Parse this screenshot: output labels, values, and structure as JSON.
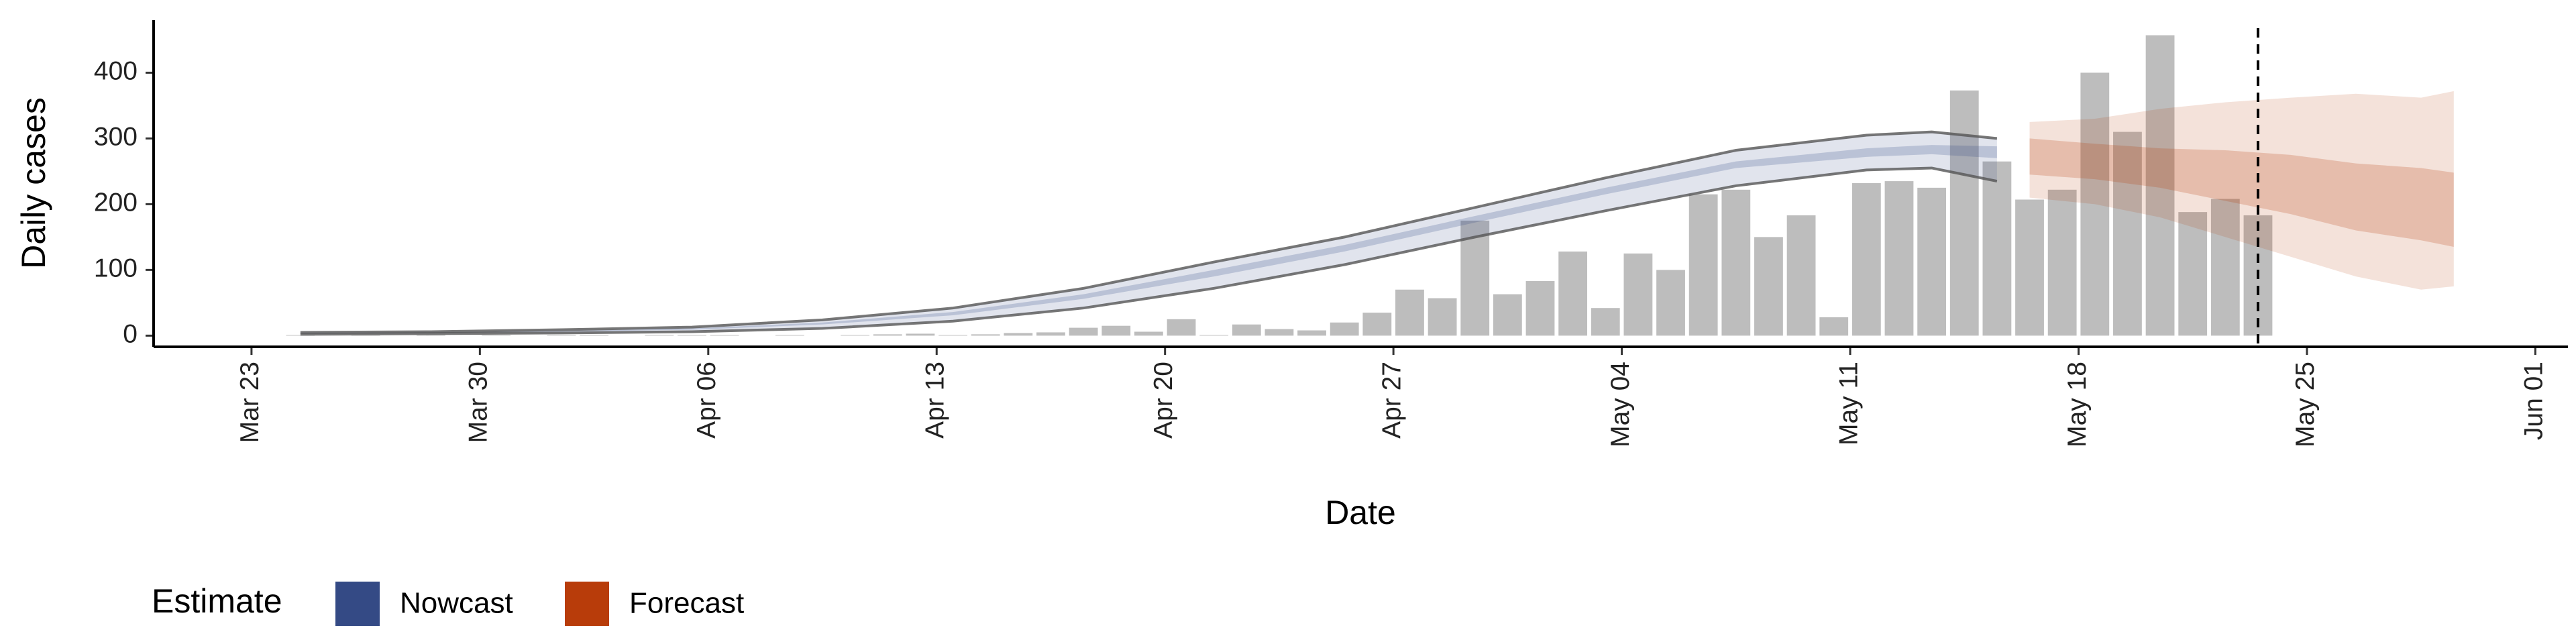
{
  "chart_data": {
    "type": "bar",
    "x_label": "Date",
    "y_label": "Daily cases",
    "legend_title": "Estimate",
    "x": [
      "Mar 24",
      "Mar 25",
      "Mar 26",
      "Mar 27",
      "Mar 28",
      "Mar 29",
      "Mar 30",
      "Mar 31",
      "Apr 01",
      "Apr 02",
      "Apr 03",
      "Apr 04",
      "Apr 05",
      "Apr 06",
      "Apr 07",
      "Apr 08",
      "Apr 09",
      "Apr 10",
      "Apr 11",
      "Apr 12",
      "Apr 13",
      "Apr 14",
      "Apr 15",
      "Apr 16",
      "Apr 17",
      "Apr 18",
      "Apr 19",
      "Apr 20",
      "Apr 21",
      "Apr 22",
      "Apr 23",
      "Apr 24",
      "Apr 25",
      "Apr 26",
      "Apr 27",
      "Apr 28",
      "Apr 29",
      "Apr 30",
      "May 01",
      "May 02",
      "May 03",
      "May 04",
      "May 05",
      "May 06",
      "May 07",
      "May 08",
      "May 09",
      "May 10",
      "May 11",
      "May 12",
      "May 13",
      "May 14",
      "May 15",
      "May 16",
      "May 17",
      "May 18",
      "May 19",
      "May 20",
      "May 21",
      "May 22",
      "May 23"
    ],
    "values": [
      1,
      0,
      1,
      0,
      1,
      0,
      1,
      0,
      1,
      1,
      0,
      1,
      1,
      1,
      0,
      1,
      0,
      1,
      2,
      3,
      1,
      2,
      4,
      5,
      12,
      15,
      6,
      25,
      1,
      17,
      10,
      8,
      20,
      35,
      70,
      57,
      175,
      63,
      83,
      128,
      42,
      125,
      100,
      215,
      222,
      150,
      183,
      28,
      232,
      235,
      225,
      373,
      265,
      207,
      222,
      400,
      310,
      457,
      188,
      208,
      183
    ],
    "color": "#bdbdbd",
    "estimates": [
      {
        "name": "Nowcast",
        "color": "#344a85",
        "x": [
          "Mar 24",
          "Mar 28",
          "Apr 01",
          "Apr 05",
          "Apr 09",
          "Apr 13",
          "Apr 17",
          "Apr 21",
          "Apr 25",
          "Apr 29",
          "May 03",
          "May 07",
          "May 11",
          "May 13",
          "May 15"
        ],
        "upper_90": [
          5,
          6,
          9,
          13,
          24,
          42,
          72,
          112,
          150,
          195,
          240,
          282,
          305,
          310,
          300
        ],
        "lower_90": [
          2,
          3,
          4,
          6,
          11,
          22,
          42,
          72,
          108,
          150,
          190,
          228,
          252,
          255,
          235
        ],
        "upper_50": [
          4,
          5,
          7,
          11,
          20,
          36,
          63,
          100,
          138,
          182,
          225,
          265,
          285,
          290,
          288
        ],
        "lower_50": [
          3,
          4,
          6,
          9,
          17,
          31,
          56,
          90,
          128,
          172,
          215,
          255,
          272,
          276,
          270
        ]
      },
      {
        "name": "Forecast",
        "color": "#b83c0a",
        "x": [
          "May 16",
          "May 18",
          "May 20",
          "May 22",
          "May 24",
          "May 26",
          "May 28",
          "May 29"
        ],
        "upper_90": [
          325,
          330,
          345,
          355,
          362,
          368,
          362,
          372
        ],
        "lower_90": [
          210,
          200,
          180,
          150,
          120,
          90,
          70,
          75
        ],
        "upper_50": [
          300,
          292,
          285,
          282,
          275,
          262,
          255,
          248
        ],
        "lower_50": [
          245,
          238,
          225,
          205,
          185,
          160,
          145,
          135
        ]
      }
    ],
    "vline": "May 23",
    "xlim": [
      "Mar 20",
      "Jun 02"
    ],
    "xticks": [
      "Mar 23",
      "Mar 30",
      "Apr 06",
      "Apr 13",
      "Apr 20",
      "Apr 27",
      "May 04",
      "May 11",
      "May 18",
      "May 25",
      "Jun 01"
    ],
    "ylim": [
      -17,
      480
    ],
    "yticks": [
      0,
      100,
      200,
      300,
      400
    ]
  }
}
